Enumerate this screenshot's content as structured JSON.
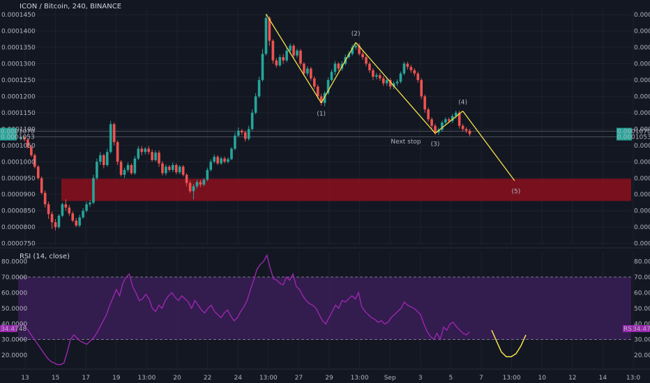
{
  "header": {
    "symbol": "ICON / Bitcoin, 240, BINANCE"
  },
  "rsi_panel": {
    "title": "RSI (14, close)",
    "value_label": "34.4748",
    "badge_prefix": "RSI"
  },
  "price_badge": {
    "top": "0.0001070",
    "bottom": "0.0001053"
  },
  "colors": {
    "background": "#131722",
    "up": "#26a69a",
    "down": "#ef5350",
    "wave": "#f5e34a",
    "zone": "#8b0f1d",
    "rsi": "#9c27b0",
    "rsi_band": "#3c1e5a"
  },
  "chart_data": [
    {
      "type": "candlestick",
      "ylim": [
        7.45e-05,
        0.0001465
      ],
      "y_ticks": [
        "0.0001450",
        "0.0001400",
        "0.0001350",
        "0.0001300",
        "0.0001250",
        "0.0001200",
        "0.0001150",
        "0.0001100",
        "0.0001050",
        "0.0001000",
        "0.0000950",
        "0.0000900",
        "0.0000850",
        "0.0000800",
        "0.0000750"
      ],
      "x_ticks": [
        "13",
        "15",
        "17",
        "19",
        "13:00",
        "20",
        "22",
        "24",
        "13:00",
        "27",
        "29",
        "13:00",
        "Sep",
        "3",
        "5",
        "7",
        "13:00",
        "10",
        "12",
        "14",
        "13:0"
      ],
      "candles": [
        [
          0.000107,
          0.0001075,
          0.0001065,
          0.0001078
        ],
        [
          0.0001075,
          0.0001068,
          0.0001062,
          0.000108
        ],
        [
          0.0001068,
          0.0001045,
          0.000104,
          0.0001072
        ],
        [
          0.0001045,
          0.000102,
          0.0001015,
          0.000105
        ],
        [
          0.000102,
          9.85e-05,
          9.8e-05,
          0.0001025
        ],
        [
          9.85e-05,
          9.5e-05,
          9.45e-05,
          9.9e-05
        ],
        [
          9.5e-05,
          9.05e-05,
          9e-05,
          9.55e-05
        ],
        [
          9.05e-05,
          8.7e-05,
          8.6e-05,
          9.12e-05
        ],
        [
          8.7e-05,
          8.4e-05,
          8.25e-05,
          8.78e-05
        ],
        [
          8.4e-05,
          8.15e-05,
          7.95e-05,
          8.48e-05
        ],
        [
          8.15e-05,
          8e-05,
          7.9e-05,
          8.25e-05
        ],
        [
          8e-05,
          8.35e-05,
          7.95e-05,
          8.4e-05
        ],
        [
          8.35e-05,
          8.7e-05,
          8.3e-05,
          8.75e-05
        ],
        [
          8.7e-05,
          8.6e-05,
          8.5e-05,
          8.85e-05
        ],
        [
          8.6e-05,
          8.42e-05,
          8.35e-05,
          8.68e-05
        ],
        [
          8.42e-05,
          8.2e-05,
          8.15e-05,
          8.48e-05
        ],
        [
          8.2e-05,
          8.05e-05,
          8e-05,
          8.28e-05
        ],
        [
          8.05e-05,
          8.3e-05,
          8e-05,
          8.38e-05
        ],
        [
          8.3e-05,
          8.5e-05,
          8.25e-05,
          8.58e-05
        ],
        [
          8.5e-05,
          8.7e-05,
          8.45e-05,
          8.78e-05
        ],
        [
          8.7e-05,
          8.75e-05,
          8.62e-05,
          8.82e-05
        ],
        [
          8.75e-05,
          9.5e-05,
          8.7e-05,
          9.6e-05
        ],
        [
          9.5e-05,
          0.0001,
          9.45e-05,
          0.000101
        ],
        [
          0.0001,
          0.000102,
          9.9e-05,
          0.000103
        ],
        [
          0.000102,
          9.9e-05,
          9.8e-05,
          0.0001025
        ],
        [
          9.9e-05,
          0.000103,
          9.85e-05,
          0.000104
        ],
        [
          0.000103,
          0.0001115,
          0.0001025,
          0.0001125
        ],
        [
          0.0001115,
          0.000106,
          0.000105,
          0.000112
        ],
        [
          0.000106,
          0.0001,
          9.9e-05,
          0.0001065
        ],
        [
          0.0001,
          9.6e-05,
          9.55e-05,
          0.0001005
        ],
        [
          9.6e-05,
          9.75e-05,
          9.5e-05,
          9.82e-05
        ],
        [
          9.75e-05,
          9.9e-05,
          9.68e-05,
          9.98e-05
        ],
        [
          9.9e-05,
          9.65e-05,
          9.6e-05,
          9.95e-05
        ],
        [
          9.65e-05,
          0.000101,
          9.6e-05,
          0.0001018
        ],
        [
          0.000101,
          0.000104,
          0.0001005,
          0.0001048
        ],
        [
          0.000104,
          0.000103,
          0.000102,
          0.0001048
        ],
        [
          0.000103,
          0.000104,
          0.0001022,
          0.0001045
        ],
        [
          0.000104,
          0.000103,
          0.0001022,
          0.0001048
        ],
        [
          0.000103,
          0.0001005,
          0.0001,
          0.0001038
        ],
        [
          0.0001005,
          0.0001028,
          0.0001,
          0.0001035
        ],
        [
          0.0001028,
          9.95e-05,
          9.85e-05,
          0.0001035
        ],
        [
          9.95e-05,
          9.65e-05,
          9.58e-05,
          0.0001002
        ],
        [
          9.65e-05,
          9.85e-05,
          9.58e-05,
          9.92e-05
        ],
        [
          9.85e-05,
          9.75e-05,
          9.68e-05,
          9.9e-05
        ],
        [
          9.75e-05,
          9.9e-05,
          9.68e-05,
          9.98e-05
        ],
        [
          9.9e-05,
          9.68e-05,
          9.62e-05,
          9.95e-05
        ],
        [
          9.68e-05,
          9.85e-05,
          9.62e-05,
          9.9e-05
        ],
        [
          9.85e-05,
          9.6e-05,
          9.55e-05,
          9.9e-05
        ],
        [
          9.6e-05,
          9.35e-05,
          9.25e-05,
          9.65e-05
        ],
        [
          9.35e-05,
          9.1e-05,
          9.05e-05,
          9.42e-05
        ],
        [
          9.1e-05,
          9.25e-05,
          8.85e-05,
          9.32e-05
        ],
        [
          9.25e-05,
          9.38e-05,
          9.18e-05,
          9.45e-05
        ],
        [
          9.38e-05,
          9.3e-05,
          9.22e-05,
          9.45e-05
        ],
        [
          9.3e-05,
          9.45e-05,
          9.25e-05,
          9.5e-05
        ],
        [
          9.45e-05,
          9.75e-05,
          9.4e-05,
          9.82e-05
        ],
        [
          9.75e-05,
          0.0001,
          9.7e-05,
          0.0001008
        ],
        [
          0.0001,
          0.0001015,
          9.95e-05,
          0.0001022
        ],
        [
          0.0001015,
          9.95e-05,
          9.9e-05,
          0.000102
        ],
        [
          9.95e-05,
          0.000101,
          9.9e-05,
          0.0001016
        ],
        [
          0.000101,
          0.0001,
          9.95e-05,
          0.0001016
        ],
        [
          0.0001,
          0.0001008,
          9.95e-05,
          0.0001014
        ],
        [
          0.0001008,
          0.000104,
          0.0001005,
          0.0001045
        ],
        [
          0.000104,
          0.000108,
          0.0001035,
          0.000109
        ],
        [
          0.000108,
          0.0001095,
          0.0001075,
          0.0001105
        ],
        [
          0.0001095,
          0.000109,
          0.0001082,
          0.00011
        ],
        [
          0.000109,
          0.000107,
          0.0001062,
          0.0001095
        ],
        [
          0.000107,
          0.00011,
          0.0001065,
          0.000111
        ],
        [
          0.00011,
          0.000115,
          0.0001095,
          0.000116
        ],
        [
          0.000115,
          0.00012,
          0.0001145,
          0.000121
        ],
        [
          0.00012,
          0.000125,
          0.0001195,
          0.000126
        ],
        [
          0.000125,
          0.000133,
          0.0001245,
          0.0001345
        ],
        [
          0.000133,
          0.000144,
          0.0001325,
          0.000145
        ],
        [
          0.000144,
          0.000137,
          0.0001355,
          0.0001445
        ],
        [
          0.000137,
          0.000131,
          0.00013,
          0.0001375
        ],
        [
          0.000131,
          0.0001295,
          0.0001288,
          0.0001318
        ],
        [
          0.0001295,
          0.000132,
          0.000129,
          0.0001328
        ],
        [
          0.000132,
          0.000131,
          0.00013,
          0.000133
        ],
        [
          0.000131,
          0.000134,
          0.0001305,
          0.0001348
        ],
        [
          0.000134,
          0.0001355,
          0.000133,
          0.0001362
        ],
        [
          0.0001355,
          0.0001325,
          0.0001318,
          0.000136
        ],
        [
          0.0001325,
          0.000134,
          0.0001318,
          0.0001346
        ],
        [
          0.000134,
          0.00013,
          0.0001292,
          0.0001345
        ],
        [
          0.00013,
          0.000127,
          0.0001262,
          0.0001305
        ],
        [
          0.000127,
          0.0001285,
          0.0001262,
          0.0001292
        ],
        [
          0.0001285,
          0.0001255,
          0.0001248,
          0.000129
        ],
        [
          0.0001255,
          0.000123,
          0.0001222,
          0.0001262
        ],
        [
          0.000123,
          0.00012,
          0.0001192,
          0.0001236
        ],
        [
          0.00012,
          0.000118,
          0.0001172,
          0.0001208
        ],
        [
          0.000118,
          0.000121,
          0.000117,
          0.0001216
        ],
        [
          0.000121,
          0.000125,
          0.0001205,
          0.0001258
        ],
        [
          0.000125,
          0.0001275,
          0.0001245,
          0.0001282
        ],
        [
          0.0001275,
          0.00013,
          0.0001265,
          0.0001308
        ],
        [
          0.00013,
          0.0001285,
          0.0001278,
          0.0001305
        ],
        [
          0.0001285,
          0.00013,
          0.0001278,
          0.0001308
        ],
        [
          0.00013,
          0.000132,
          0.0001295,
          0.0001328
        ],
        [
          0.000132,
          0.000133,
          0.0001315,
          0.0001338
        ],
        [
          0.000133,
          0.000135,
          0.0001325,
          0.0001358
        ],
        [
          0.000135,
          0.0001355,
          0.0001342,
          0.0001365
        ],
        [
          0.0001355,
          0.000133,
          0.0001325,
          0.0001362
        ],
        [
          0.000133,
          0.000132,
          0.0001312,
          0.0001338
        ],
        [
          0.000132,
          0.00013,
          0.0001292,
          0.0001326
        ],
        [
          0.00013,
          0.000128,
          0.0001272,
          0.0001306
        ],
        [
          0.000128,
          0.000126,
          0.000125,
          0.0001286
        ],
        [
          0.000126,
          0.0001265,
          0.0001252,
          0.0001272
        ],
        [
          0.0001265,
          0.0001255,
          0.0001248,
          0.0001272
        ],
        [
          0.0001255,
          0.000124,
          0.0001232,
          0.0001262
        ],
        [
          0.000124,
          0.000125,
          0.0001232,
          0.0001256
        ],
        [
          0.000125,
          0.000123,
          0.0001222,
          0.0001256
        ],
        [
          0.000123,
          0.000124,
          0.0001222,
          0.0001246
        ],
        [
          0.000124,
          0.0001245,
          0.0001232,
          0.0001252
        ],
        [
          0.0001245,
          0.000127,
          0.000124,
          0.0001276
        ],
        [
          0.000127,
          0.00013,
          0.0001265,
          0.0001306
        ],
        [
          0.00013,
          0.000129,
          0.0001282,
          0.0001306
        ],
        [
          0.000129,
          0.000128,
          0.0001272,
          0.0001296
        ],
        [
          0.000128,
          0.000127,
          0.0001262,
          0.0001286
        ],
        [
          0.000127,
          0.000125,
          0.0001242,
          0.0001276
        ],
        [
          0.000125,
          0.00012,
          0.0001192,
          0.0001256
        ],
        [
          0.00012,
          0.000116,
          0.000115,
          0.0001206
        ],
        [
          0.000116,
          0.000113,
          0.0001122,
          0.0001166
        ],
        [
          0.000113,
          0.000111,
          0.0001102,
          0.0001136
        ],
        [
          0.000111,
          0.000109,
          0.0001082,
          0.0001116
        ],
        [
          0.000109,
          0.0001098,
          0.0001082,
          0.0001104
        ],
        [
          0.0001098,
          0.000112,
          0.0001092,
          0.0001126
        ],
        [
          0.000112,
          0.000113,
          0.0001112,
          0.0001136
        ],
        [
          0.000113,
          0.0001125,
          0.0001118,
          0.0001136
        ],
        [
          0.0001125,
          0.000114,
          0.0001118,
          0.0001146
        ],
        [
          0.000114,
          0.000115,
          0.0001132,
          0.0001156
        ],
        [
          0.000115,
          0.000111,
          0.0001102,
          0.0001156
        ],
        [
          0.000111,
          0.00011,
          0.0001092,
          0.0001116
        ],
        [
          0.00011,
          0.0001095,
          0.0001088,
          0.0001106
        ],
        [
          0.0001095,
          0.0001085,
          0.0001078,
          0.00011
        ]
      ],
      "resistance_zone": [
        8.8e-05,
        9.48e-05
      ],
      "horizontal_lines": [
        0.0001093,
        0.0001076
      ],
      "elliott_wave": {
        "points": [
          {
            "candle": 71,
            "price": 0.0001452
          },
          {
            "candle": 87,
            "price": 0.000118,
            "label": "(1)"
          },
          {
            "candle": 97,
            "price": 0.0001365,
            "label": "(2)"
          },
          {
            "candle": 120,
            "price": 0.0001087,
            "label": "(3)"
          },
          {
            "candle": 128,
            "price": 0.0001155,
            "label": "(4)"
          },
          {
            "candle": 143,
            "price": 9.42e-05,
            "label": "(5)"
          }
        ]
      },
      "annotation": "Next stop"
    },
    {
      "type": "line",
      "title": "RSI (14, close)",
      "ylim": [
        12,
        86
      ],
      "y_ticks": [
        "80.0000",
        "70.0000",
        "60.0000",
        "50.0000",
        "40.0000",
        "30.0000",
        "20.0000"
      ],
      "band": [
        30,
        70
      ],
      "values": [
        38,
        40,
        39,
        36,
        33,
        30,
        27,
        24,
        21,
        18,
        16,
        15,
        14,
        14,
        15,
        22,
        30,
        33,
        31,
        29,
        28,
        27,
        29,
        31,
        34,
        38,
        42,
        46,
        52,
        57,
        62,
        58,
        66,
        70,
        72,
        64,
        60,
        55,
        56,
        59,
        56,
        50,
        48,
        52,
        50,
        55,
        58,
        60,
        57,
        55,
        58,
        56,
        54,
        50,
        55,
        52,
        49,
        47,
        50,
        52,
        48,
        46,
        44,
        47,
        49,
        45,
        42,
        44,
        48,
        51,
        55,
        62,
        68,
        75,
        78,
        80,
        84,
        76,
        69,
        68,
        66,
        65,
        70,
        68,
        72,
        64,
        62,
        58,
        55,
        53,
        52,
        50,
        46,
        42,
        40,
        44,
        48,
        52,
        50,
        55,
        54,
        56,
        58,
        56,
        60,
        51,
        48,
        46,
        44,
        43,
        41,
        42,
        40,
        41,
        44,
        46,
        48,
        50,
        54,
        52,
        51,
        50,
        48,
        46,
        40,
        35,
        32,
        30,
        34,
        30,
        38,
        36,
        40,
        41,
        38,
        36,
        34,
        33,
        35
      ],
      "projection": [
        36,
        29,
        22,
        19,
        19,
        21,
        26,
        33
      ]
    }
  ]
}
